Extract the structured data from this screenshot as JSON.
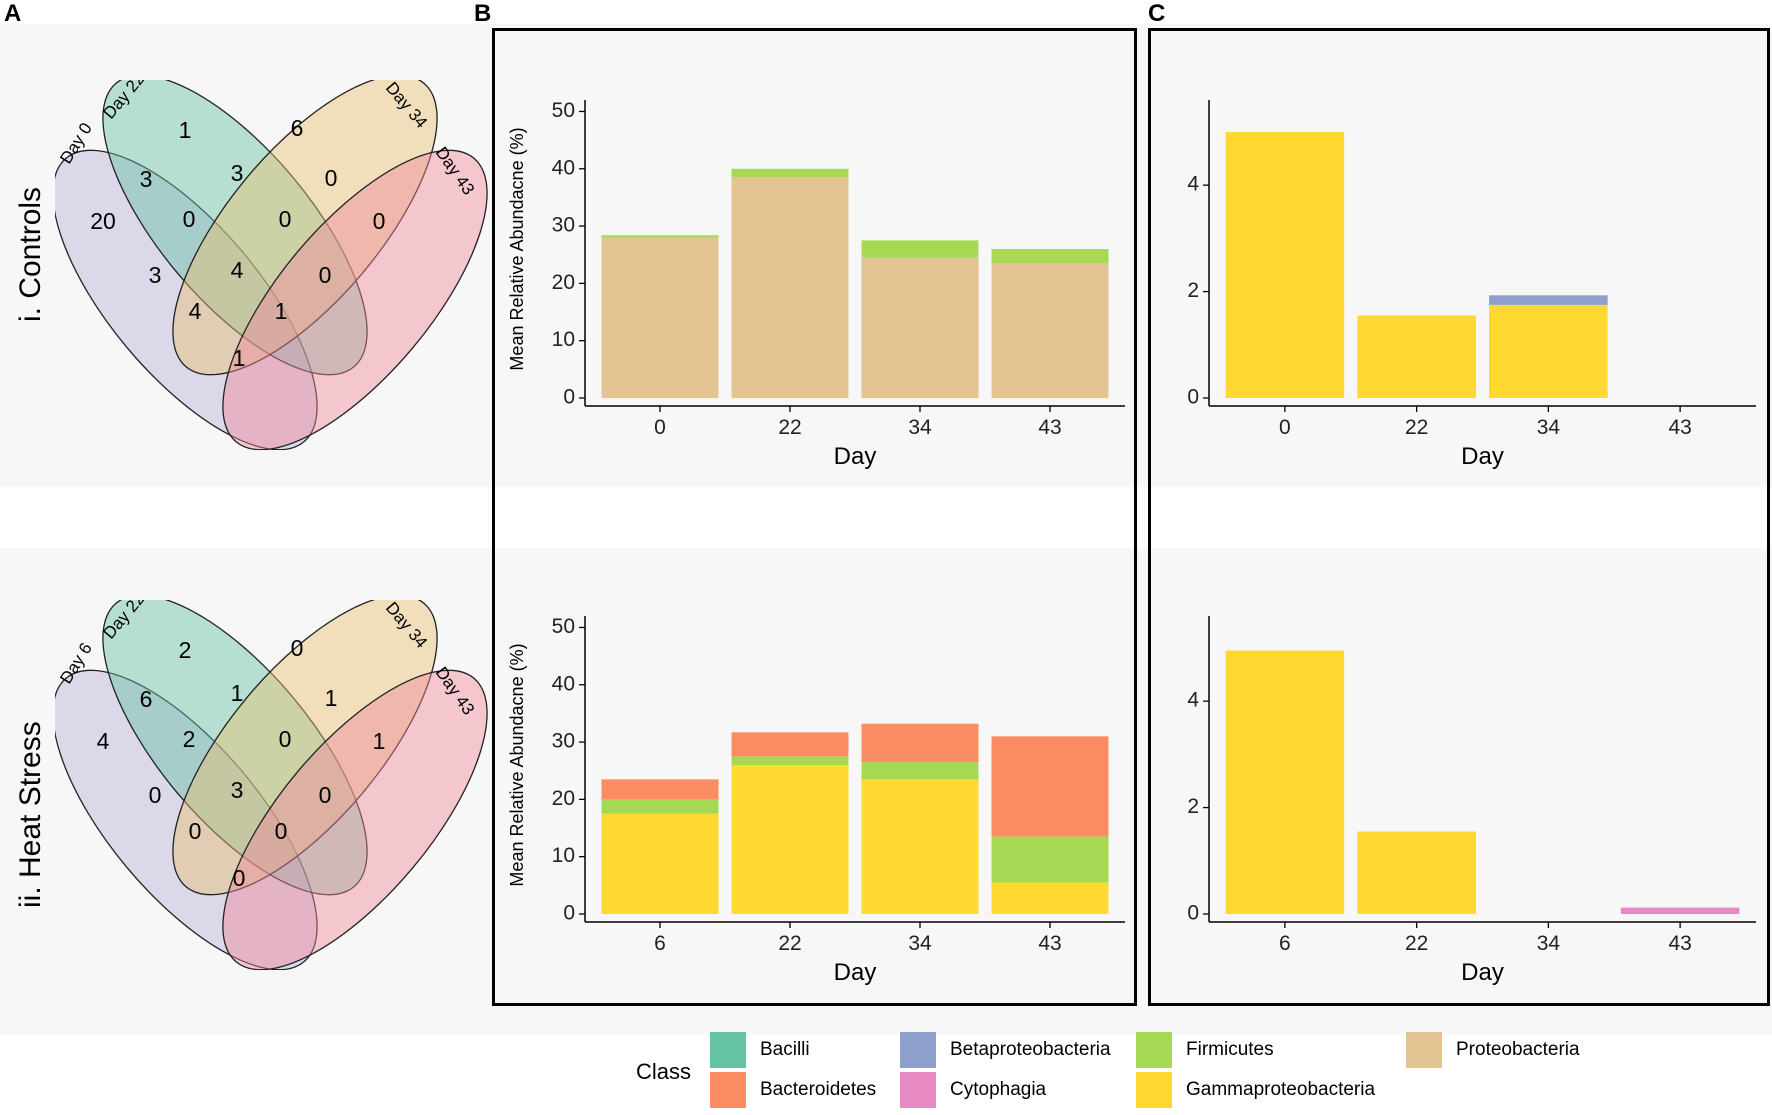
{
  "panels": {
    "a": "A",
    "b": "B",
    "c": "C"
  },
  "rows": [
    {
      "label": "i. Controls",
      "venn_sets": [
        "Day 0",
        "Day 22",
        "Day 34",
        "Day 43"
      ],
      "venn_counts": {
        "d0_only": "20",
        "d22_only": "1",
        "d34_only": "6",
        "d43_only": "0",
        "d0_d22": "3",
        "d22_d34": "3",
        "d34_d43": "0",
        "d0_d22_d34": "0",
        "d22_d34_d43": "0",
        "d0_d34": "3",
        "d22_d43": "0",
        "all": "4",
        "d0_d34_d43": "4",
        "d0_d22_d43": "1",
        "d0_d43": "1"
      }
    },
    {
      "label": "ii. Heat Stress",
      "venn_sets": [
        "Day 6",
        "Day 22",
        "Day 34",
        "Day 43"
      ],
      "venn_counts": {
        "d0_only": "4",
        "d22_only": "2",
        "d34_only": "0",
        "d43_only": "1",
        "d0_d22": "6",
        "d22_d34": "1",
        "d34_d43": "1",
        "d0_d22_d34": "2",
        "d22_d34_d43": "0",
        "d0_d34": "0",
        "d22_d43": "0",
        "all": "3",
        "d0_d34_d43": "0",
        "d0_d22_d43": "0",
        "d0_d43": "0"
      }
    }
  ],
  "colors": {
    "Bacilli": "#66c2a5",
    "Bacteroidetes": "#fc8d62",
    "Betaproteobacteria": "#8da0cb",
    "Cytophagia": "#e78ac3",
    "Firmicutes": "#a6d854",
    "Gammaproteobacteria": "#ffd92f",
    "Proteobacteria": "#e5c494"
  },
  "chart_data": [
    {
      "id": "B-i",
      "type": "bar",
      "stacked": true,
      "xlabel": "Day",
      "ylabel": "Mean Relative Abundacne (%)",
      "ylim": [
        0,
        52
      ],
      "yticks": [
        0,
        10,
        20,
        30,
        40,
        50
      ],
      "categories": [
        "0",
        "22",
        "34",
        "43"
      ],
      "series": [
        {
          "name": "Proteobacteria",
          "values": [
            28.0,
            38.5,
            24.5,
            23.5
          ]
        },
        {
          "name": "Firmicutes",
          "values": [
            0.4,
            1.5,
            3.0,
            2.5
          ]
        }
      ]
    },
    {
      "id": "C-i",
      "type": "bar",
      "stacked": true,
      "xlabel": "Day",
      "ylabel": "",
      "ylim": [
        0,
        5.6
      ],
      "yticks": [
        0,
        2,
        4
      ],
      "categories": [
        "0",
        "22",
        "34",
        "43"
      ],
      "series": [
        {
          "name": "Gammaproteobacteria",
          "values": [
            5.0,
            1.55,
            1.75,
            0
          ]
        },
        {
          "name": "Betaproteobacteria",
          "values": [
            0,
            0,
            0.18,
            0
          ]
        }
      ]
    },
    {
      "id": "B-ii",
      "type": "bar",
      "stacked": true,
      "xlabel": "Day",
      "ylabel": "Mean Relative Abundacne (%)",
      "ylim": [
        0,
        52
      ],
      "yticks": [
        0,
        10,
        20,
        30,
        40,
        50
      ],
      "categories": [
        "6",
        "22",
        "34",
        "43"
      ],
      "series": [
        {
          "name": "Gammaproteobacteria",
          "values": [
            17.5,
            26.0,
            23.5,
            5.5
          ]
        },
        {
          "name": "Firmicutes",
          "values": [
            2.5,
            1.5,
            3.0,
            8.0
          ]
        },
        {
          "name": "Bacteroidetes",
          "values": [
            3.5,
            4.2,
            6.7,
            17.5
          ]
        }
      ]
    },
    {
      "id": "C-ii",
      "type": "bar",
      "stacked": true,
      "xlabel": "Day",
      "ylabel": "",
      "ylim": [
        0,
        5.6
      ],
      "yticks": [
        0,
        2,
        4
      ],
      "categories": [
        "6",
        "22",
        "34",
        "43"
      ],
      "series": [
        {
          "name": "Gammaproteobacteria",
          "values": [
            4.95,
            1.55,
            0,
            0
          ]
        },
        {
          "name": "Cytophagia",
          "values": [
            0,
            0,
            0,
            0.12
          ]
        }
      ]
    }
  ],
  "legend": {
    "title": "Class",
    "items": [
      "Bacilli",
      "Bacteroidetes",
      "Betaproteobacteria",
      "Cytophagia",
      "Firmicutes",
      "Gammaproteobacteria",
      "Proteobacteria"
    ]
  }
}
